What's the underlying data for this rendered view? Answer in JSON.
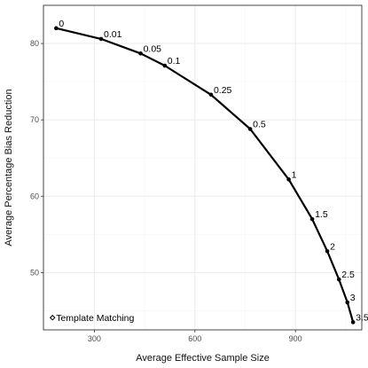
{
  "chart_data": {
    "type": "line",
    "title": "",
    "xlabel": "Average Effective Sample Size",
    "ylabel": "Average Percentage Bias Reduction",
    "xlim": [
      148,
      1098
    ],
    "ylim": [
      42.5,
      85.0
    ],
    "x_ticks": [
      300,
      600,
      900
    ],
    "y_ticks": [
      50,
      60,
      70,
      80
    ],
    "grid": true,
    "legend": "none",
    "series": [
      {
        "x": [
          186,
          320,
          438,
          510,
          648,
          765,
          880,
          950,
          995,
          1030,
          1055,
          1072
        ],
        "y": [
          82.0,
          80.6,
          78.7,
          77.1,
          73.3,
          68.8,
          62.2,
          57.0,
          52.8,
          49.1,
          46.1,
          43.5
        ],
        "labels": [
          "0",
          "0.01",
          "0.05",
          "0.1",
          "0.25",
          "0.5",
          "1",
          "1.5",
          "2",
          "2.5",
          "3",
          "3.5"
        ]
      }
    ],
    "annotation": {
      "text": "Template Matching",
      "marker": "open-diamond",
      "x": 175,
      "y": 44.1
    },
    "colors": {
      "line": "#000000",
      "grid_major": "#ebebeb",
      "grid_minor": "#f5f5f5",
      "panel_border": "#333333",
      "tick_text": "#4d4d4d"
    }
  }
}
